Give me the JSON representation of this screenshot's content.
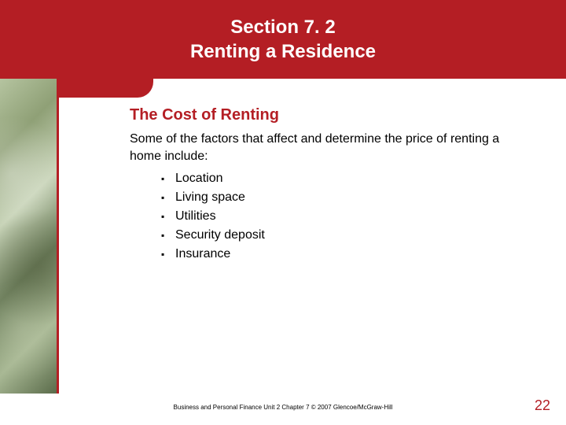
{
  "header": {
    "line1": "Section 7. 2",
    "line2": "Renting a Residence"
  },
  "content": {
    "title": "The Cost of Renting",
    "intro": "Some of the factors that affect and determine the price of renting a home include:",
    "bullets": [
      "Location",
      "Living space",
      "Utilities",
      "Security deposit",
      "Insurance"
    ]
  },
  "footer": {
    "text": "Business and Personal Finance  Unit 2  Chapter 7  © 2007  Glencoe/McGraw-Hill"
  },
  "page_number": "22",
  "colors": {
    "brand_red": "#b41e24",
    "text_black": "#000000",
    "background": "#ffffff"
  }
}
